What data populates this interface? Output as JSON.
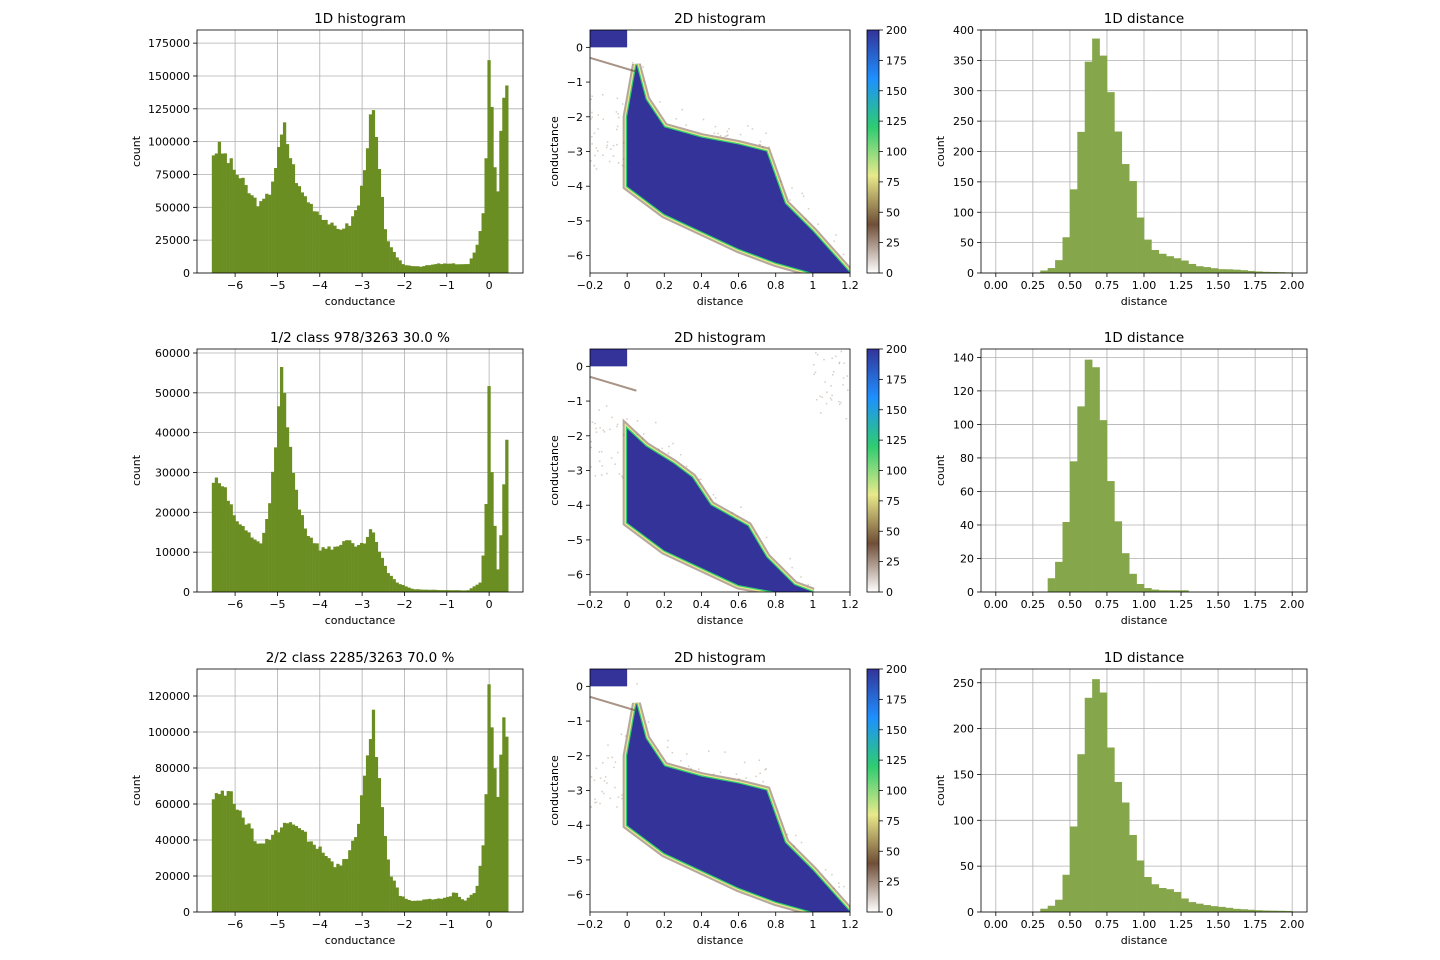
{
  "colors": {
    "hist1d": "#6b8e23",
    "dist": "#86a64b",
    "grid": "#b0b0b0",
    "density": "#333399",
    "colormap": [
      "#ffffff",
      "#6f4e37",
      "#e8e98a",
      "#2ecc71",
      "#1e90ff",
      "#333399"
    ]
  },
  "chart_data": [
    {
      "type": "bar",
      "row": 0,
      "col": 0,
      "title": "1D histogram",
      "xlabel": "conductance",
      "ylabel": "count",
      "xlim": [
        -6.9,
        0.8
      ],
      "ylim": [
        0,
        185000
      ],
      "xticks": [
        -6,
        -5,
        -4,
        -3,
        -2,
        -1,
        0
      ],
      "yticks": [
        0,
        25000,
        50000,
        75000,
        100000,
        125000,
        150000,
        175000
      ],
      "bin_width": 0.07,
      "profile": [
        [
          -6.55,
          90000
        ],
        [
          -6.4,
          96000
        ],
        [
          -6.2,
          88000
        ],
        [
          -6.0,
          78000
        ],
        [
          -5.8,
          68000
        ],
        [
          -5.6,
          58000
        ],
        [
          -5.4,
          52000
        ],
        [
          -5.2,
          60000
        ],
        [
          -5.0,
          88000
        ],
        [
          -4.85,
          113000
        ],
        [
          -4.7,
          90000
        ],
        [
          -4.5,
          65000
        ],
        [
          -4.2,
          52000
        ],
        [
          -3.9,
          42000
        ],
        [
          -3.6,
          33000
        ],
        [
          -3.3,
          37000
        ],
        [
          -3.05,
          55000
        ],
        [
          -2.9,
          95000
        ],
        [
          -2.75,
          126000
        ],
        [
          -2.6,
          80000
        ],
        [
          -2.45,
          30000
        ],
        [
          -2.2,
          12000
        ],
        [
          -2.0,
          6000
        ],
        [
          -1.6,
          5000
        ],
        [
          -1.2,
          7000
        ],
        [
          -0.8,
          7000
        ],
        [
          -0.5,
          6500
        ],
        [
          -0.3,
          18000
        ],
        [
          -0.15,
          45000
        ],
        [
          -0.05,
          100000
        ],
        [
          0.0,
          175000
        ],
        [
          0.1,
          95000
        ],
        [
          0.2,
          60000
        ],
        [
          0.3,
          130000
        ],
        [
          0.4,
          147000
        ],
        [
          0.47,
          100000
        ]
      ]
    },
    {
      "type": "heatmap",
      "row": 0,
      "col": 1,
      "title": "2D histogram",
      "xlabel": "distance",
      "ylabel": "conductance",
      "xlim": [
        -0.2,
        1.2
      ],
      "ylim": [
        -6.5,
        0.5
      ],
      "xticks": [
        -0.2,
        0.0,
        0.2,
        0.4,
        0.6,
        0.8,
        1.0,
        1.2
      ],
      "yticks": [
        -6,
        -5,
        -4,
        -3,
        -2,
        -1,
        0
      ],
      "colorbar": {
        "min": 0,
        "max": 200,
        "ticks": [
          0,
          25,
          50,
          75,
          100,
          125,
          150,
          175,
          200
        ]
      },
      "upper_edge": [
        [
          0.0,
          -2.0
        ],
        [
          0.05,
          -0.5
        ],
        [
          0.1,
          -1.5
        ],
        [
          0.2,
          -2.3
        ],
        [
          0.4,
          -2.6
        ],
        [
          0.6,
          -2.8
        ],
        [
          0.75,
          -3.0
        ],
        [
          0.85,
          -4.5
        ],
        [
          1.0,
          -5.3
        ],
        [
          1.2,
          -6.5
        ]
      ],
      "lower_edge": [
        [
          0.0,
          -4.0
        ],
        [
          0.2,
          -4.8
        ],
        [
          0.4,
          -5.3
        ],
        [
          0.6,
          -5.8
        ],
        [
          0.8,
          -6.2
        ],
        [
          1.0,
          -6.5
        ]
      ]
    },
    {
      "type": "bar",
      "row": 0,
      "col": 2,
      "title": "1D distance",
      "xlabel": "distance",
      "ylabel": "count",
      "xlim": [
        -0.1,
        2.1
      ],
      "ylim": [
        0,
        400
      ],
      "xticks": [
        "0.00",
        "0.25",
        "0.50",
        "0.75",
        "1.00",
        "1.25",
        "1.50",
        "1.75",
        "2.00"
      ],
      "yticks": [
        0,
        50,
        100,
        150,
        200,
        250,
        300,
        350,
        400
      ],
      "bin_width": 0.05,
      "profile": [
        [
          0.3,
          2
        ],
        [
          0.4,
          10
        ],
        [
          0.45,
          30
        ],
        [
          0.5,
          85
        ],
        [
          0.55,
          180
        ],
        [
          0.6,
          290
        ],
        [
          0.65,
          370
        ],
        [
          0.7,
          380
        ],
        [
          0.75,
          320
        ],
        [
          0.8,
          250
        ],
        [
          0.85,
          200
        ],
        [
          0.9,
          170
        ],
        [
          0.95,
          120
        ],
        [
          1.0,
          65
        ],
        [
          1.05,
          45
        ],
        [
          1.1,
          32
        ],
        [
          1.15,
          28
        ],
        [
          1.25,
          22
        ],
        [
          1.35,
          12
        ],
        [
          1.5,
          7
        ],
        [
          1.65,
          5
        ],
        [
          1.8,
          2
        ],
        [
          2.0,
          1
        ]
      ]
    },
    {
      "type": "bar",
      "row": 1,
      "col": 0,
      "title": "1/2 class   978/3263 30.0 %",
      "xlabel": "conductance",
      "ylabel": "count",
      "xlim": [
        -6.9,
        0.8
      ],
      "ylim": [
        0,
        61000
      ],
      "xticks": [
        -6,
        -5,
        -4,
        -3,
        -2,
        -1,
        0
      ],
      "yticks": [
        0,
        10000,
        20000,
        30000,
        40000,
        50000,
        60000
      ],
      "bin_width": 0.07,
      "profile": [
        [
          -6.55,
          28000
        ],
        [
          -6.3,
          27000
        ],
        [
          -6.1,
          21000
        ],
        [
          -5.9,
          17000
        ],
        [
          -5.6,
          14000
        ],
        [
          -5.4,
          12000
        ],
        [
          -5.2,
          20000
        ],
        [
          -5.05,
          35000
        ],
        [
          -4.9,
          57000
        ],
        [
          -4.8,
          45000
        ],
        [
          -4.65,
          33000
        ],
        [
          -4.5,
          22000
        ],
        [
          -4.3,
          15000
        ],
        [
          -4.0,
          11000
        ],
        [
          -3.7,
          11000
        ],
        [
          -3.4,
          13000
        ],
        [
          -3.1,
          11000
        ],
        [
          -2.9,
          13000
        ],
        [
          -2.75,
          16000
        ],
        [
          -2.6,
          10000
        ],
        [
          -2.4,
          5000
        ],
        [
          -2.2,
          2500
        ],
        [
          -1.8,
          700
        ],
        [
          -1.2,
          500
        ],
        [
          -0.5,
          400
        ],
        [
          -0.2,
          2500
        ],
        [
          -0.1,
          14000
        ],
        [
          0.0,
          51000
        ],
        [
          0.08,
          25000
        ],
        [
          0.2,
          5000
        ],
        [
          0.3,
          18000
        ],
        [
          0.4,
          41000
        ],
        [
          0.48,
          22000
        ]
      ]
    },
    {
      "type": "heatmap",
      "row": 1,
      "col": 1,
      "title": "2D histogram",
      "xlabel": "distance",
      "ylabel": "conductance",
      "xlim": [
        -0.2,
        1.2
      ],
      "ylim": [
        -6.5,
        0.5
      ],
      "xticks": [
        -0.2,
        0.0,
        0.2,
        0.4,
        0.6,
        0.8,
        1.0,
        1.2
      ],
      "yticks": [
        -6,
        -5,
        -4,
        -3,
        -2,
        -1,
        0
      ],
      "colorbar": {
        "min": 0,
        "max": 200,
        "ticks": [
          0,
          25,
          50,
          75,
          100,
          125,
          150,
          175,
          200
        ]
      },
      "upper_edge": [
        [
          0.0,
          -1.8
        ],
        [
          0.1,
          -2.3
        ],
        [
          0.25,
          -2.8
        ],
        [
          0.35,
          -3.2
        ],
        [
          0.45,
          -4.0
        ],
        [
          0.65,
          -4.6
        ],
        [
          0.75,
          -5.5
        ],
        [
          0.9,
          -6.3
        ],
        [
          1.0,
          -6.5
        ]
      ],
      "lower_edge": [
        [
          0.0,
          -4.5
        ],
        [
          0.2,
          -5.3
        ],
        [
          0.4,
          -5.8
        ],
        [
          0.6,
          -6.3
        ],
        [
          0.8,
          -6.5
        ]
      ]
    },
    {
      "type": "bar",
      "row": 1,
      "col": 2,
      "title": "1D distance",
      "xlabel": "distance",
      "ylabel": "count",
      "xlim": [
        -0.1,
        2.1
      ],
      "ylim": [
        0,
        145
      ],
      "xticks": [
        "0.00",
        "0.25",
        "0.50",
        "0.75",
        "1.00",
        "1.25",
        "1.50",
        "1.75",
        "2.00"
      ],
      "yticks": [
        0,
        20,
        40,
        60,
        80,
        100,
        120,
        140
      ],
      "bin_width": 0.05,
      "profile": [
        [
          0.35,
          4
        ],
        [
          0.4,
          12
        ],
        [
          0.45,
          25
        ],
        [
          0.5,
          58
        ],
        [
          0.55,
          95
        ],
        [
          0.6,
          138
        ],
        [
          0.65,
          135
        ],
        [
          0.7,
          120
        ],
        [
          0.75,
          80
        ],
        [
          0.8,
          50
        ],
        [
          0.85,
          30
        ],
        [
          0.9,
          16
        ],
        [
          0.95,
          7
        ],
        [
          1.0,
          3
        ],
        [
          1.1,
          1
        ],
        [
          1.2,
          1
        ],
        [
          1.3,
          1
        ]
      ]
    },
    {
      "type": "bar",
      "row": 2,
      "col": 0,
      "title": "2/2 class   2285/3263 70.0 %",
      "xlabel": "conductance",
      "ylabel": "count",
      "xlim": [
        -6.9,
        0.8
      ],
      "ylim": [
        0,
        135000
      ],
      "xticks": [
        -6,
        -5,
        -4,
        -3,
        -2,
        -1,
        0
      ],
      "yticks": [
        0,
        20000,
        40000,
        60000,
        80000,
        100000,
        120000
      ],
      "bin_width": 0.07,
      "profile": [
        [
          -6.55,
          62000
        ],
        [
          -6.35,
          70000
        ],
        [
          -6.1,
          64000
        ],
        [
          -5.8,
          52000
        ],
        [
          -5.5,
          40000
        ],
        [
          -5.2,
          40000
        ],
        [
          -5.0,
          44000
        ],
        [
          -4.8,
          51000
        ],
        [
          -4.5,
          46000
        ],
        [
          -4.2,
          40000
        ],
        [
          -3.9,
          33000
        ],
        [
          -3.6,
          25000
        ],
        [
          -3.35,
          30000
        ],
        [
          -3.1,
          45000
        ],
        [
          -2.95,
          75000
        ],
        [
          -2.75,
          112000
        ],
        [
          -2.55,
          60000
        ],
        [
          -2.35,
          22000
        ],
        [
          -2.1,
          9000
        ],
        [
          -1.8,
          6000
        ],
        [
          -1.4,
          7000
        ],
        [
          -1.0,
          8000
        ],
        [
          -0.8,
          11000
        ],
        [
          -0.6,
          6000
        ],
        [
          -0.3,
          12000
        ],
        [
          -0.15,
          35000
        ],
        [
          -0.05,
          75000
        ],
        [
          0.0,
          130000
        ],
        [
          0.1,
          90000
        ],
        [
          0.2,
          60000
        ],
        [
          0.3,
          100000
        ],
        [
          0.4,
          105000
        ],
        [
          0.47,
          70000
        ]
      ]
    },
    {
      "type": "heatmap",
      "row": 2,
      "col": 1,
      "title": "2D histogram",
      "xlabel": "distance",
      "ylabel": "conductance",
      "xlim": [
        -0.2,
        1.2
      ],
      "ylim": [
        -6.5,
        0.5
      ],
      "xticks": [
        -0.2,
        0.0,
        0.2,
        0.4,
        0.6,
        0.8,
        1.0,
        1.2
      ],
      "yticks": [
        -6,
        -5,
        -4,
        -3,
        -2,
        -1,
        0
      ],
      "colorbar": {
        "min": 0,
        "max": 200,
        "ticks": [
          0,
          25,
          50,
          75,
          100,
          125,
          150,
          175,
          200
        ]
      },
      "upper_edge": [
        [
          0.0,
          -2.0
        ],
        [
          0.05,
          -0.5
        ],
        [
          0.1,
          -1.5
        ],
        [
          0.2,
          -2.3
        ],
        [
          0.4,
          -2.6
        ],
        [
          0.6,
          -2.8
        ],
        [
          0.75,
          -3.0
        ],
        [
          0.85,
          -4.5
        ],
        [
          1.0,
          -5.3
        ],
        [
          1.2,
          -6.5
        ]
      ],
      "lower_edge": [
        [
          0.0,
          -4.0
        ],
        [
          0.2,
          -4.8
        ],
        [
          0.4,
          -5.3
        ],
        [
          0.6,
          -5.8
        ],
        [
          0.8,
          -6.2
        ],
        [
          1.0,
          -6.5
        ]
      ]
    },
    {
      "type": "bar",
      "row": 2,
      "col": 2,
      "title": "1D distance",
      "xlabel": "distance",
      "ylabel": "count",
      "xlim": [
        -0.1,
        2.1
      ],
      "ylim": [
        0,
        265
      ],
      "xticks": [
        "0.00",
        "0.25",
        "0.50",
        "0.75",
        "1.00",
        "1.25",
        "1.50",
        "1.75",
        "2.00"
      ],
      "yticks": [
        0,
        50,
        100,
        150,
        200,
        250
      ],
      "bin_width": 0.05,
      "profile": [
        [
          0.3,
          2
        ],
        [
          0.4,
          8
        ],
        [
          0.45,
          20
        ],
        [
          0.5,
          60
        ],
        [
          0.55,
          130
        ],
        [
          0.6,
          200
        ],
        [
          0.65,
          245
        ],
        [
          0.7,
          252
        ],
        [
          0.75,
          220
        ],
        [
          0.8,
          160
        ],
        [
          0.85,
          130
        ],
        [
          0.9,
          100
        ],
        [
          0.95,
          70
        ],
        [
          1.0,
          40
        ],
        [
          1.05,
          33
        ],
        [
          1.1,
          28
        ],
        [
          1.2,
          25
        ],
        [
          1.3,
          12
        ],
        [
          1.45,
          7
        ],
        [
          1.6,
          4
        ],
        [
          1.75,
          2
        ],
        [
          2.0,
          1
        ]
      ]
    }
  ]
}
